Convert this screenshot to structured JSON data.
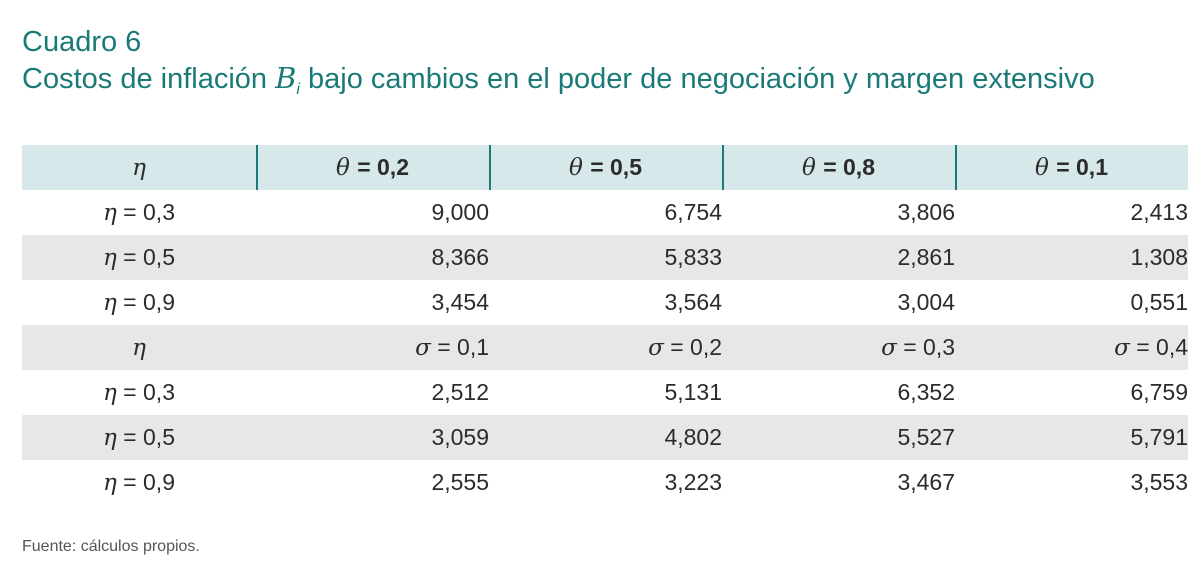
{
  "caption": {
    "label": "Cuadro 6",
    "title_prefix": "Costos de inflación",
    "title_symbol": "B",
    "title_subscript": "i",
    "title_suffix": "bajo cambios en el poder de negociación y margen extensivo"
  },
  "table": {
    "header": {
      "row_label": "η",
      "columns": [
        {
          "symbol": "θ",
          "value": "= 0,2"
        },
        {
          "symbol": "θ",
          "value": "= 0,5"
        },
        {
          "symbol": "θ",
          "value": "= 0,8"
        },
        {
          "symbol": "θ",
          "value": "= 0,1"
        }
      ]
    },
    "theta_rows": [
      {
        "label": "η",
        "eq": " = 0,3",
        "values": [
          "9,000",
          "6,754",
          "3,806",
          "2,413"
        ]
      },
      {
        "label": "η",
        "eq": " = 0,5",
        "values": [
          "8,366",
          "5,833",
          "2,861",
          "1,308"
        ]
      },
      {
        "label": "η",
        "eq": " = 0,9",
        "values": [
          "3,454",
          "3,564",
          "3,004",
          "0,551"
        ]
      }
    ],
    "subheader": {
      "row_label": "η",
      "columns": [
        {
          "symbol": "σ",
          "value": " = 0,1"
        },
        {
          "symbol": "σ",
          "value": " = 0,2"
        },
        {
          "symbol": "σ",
          "value": " = 0,3"
        },
        {
          "symbol": "σ",
          "value": " = 0,4"
        }
      ]
    },
    "sigma_rows": [
      {
        "label": "η",
        "eq": " = 0,3",
        "values": [
          "2,512",
          "5,131",
          "6,352",
          "6,759"
        ]
      },
      {
        "label": "η",
        "eq": " = 0,5",
        "values": [
          "3,059",
          "4,802",
          "5,527",
          "5,791"
        ]
      },
      {
        "label": "η",
        "eq": " = 0,9",
        "values": [
          "2,555",
          "3,223",
          "3,467",
          "3,553"
        ]
      }
    ]
  },
  "source": "Fuente: cálculos propios."
}
